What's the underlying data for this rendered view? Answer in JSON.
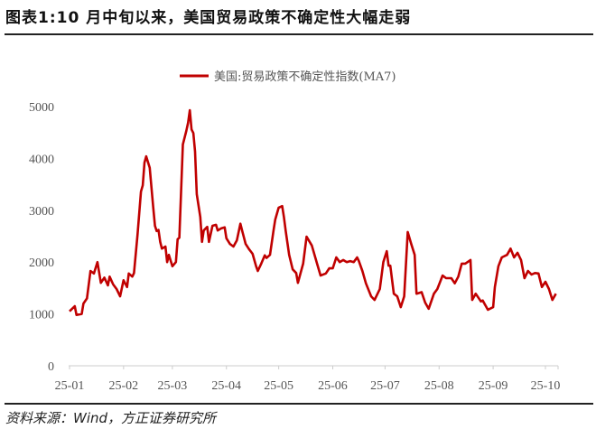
{
  "title": "图表1:10 月中旬以来，美国贸易政策不确定性大幅走弱",
  "source": "资料来源：Wind，方正证券研究所",
  "chart_data": {
    "type": "line",
    "title": "",
    "xlabel": "",
    "ylabel": "",
    "ylim": [
      0,
      5000
    ],
    "yticks": [
      "0",
      "1000",
      "2000",
      "3000",
      "4000",
      "5000"
    ],
    "xticks": [
      "25-01",
      "25-02",
      "25-03",
      "25-04",
      "25-05",
      "25-06",
      "25-07",
      "25-08",
      "25-09",
      "25-10"
    ],
    "xtick_dates": [
      "2025-01-01",
      "2025-02-01",
      "2025-03-01",
      "2025-04-01",
      "2025-05-01",
      "2025-06-01",
      "2025-07-01",
      "2025-08-01",
      "2025-09-01",
      "2025-10-01"
    ],
    "grid": false,
    "legend_placement": "top-center",
    "series": [
      {
        "name": "美国:贸易政策不确定性指数(MA7)",
        "color": "#C00000",
        "points": [
          [
            "2025-01-01",
            1050
          ],
          [
            "2025-01-04",
            1150
          ],
          [
            "2025-01-05",
            980
          ],
          [
            "2025-01-08",
            1000
          ],
          [
            "2025-01-09",
            1200
          ],
          [
            "2025-01-11",
            1300
          ],
          [
            "2025-01-13",
            1830
          ],
          [
            "2025-01-15",
            1780
          ],
          [
            "2025-01-17",
            2000
          ],
          [
            "2025-01-19",
            1600
          ],
          [
            "2025-01-21",
            1700
          ],
          [
            "2025-01-23",
            1550
          ],
          [
            "2025-01-24",
            1720
          ],
          [
            "2025-01-26",
            1570
          ],
          [
            "2025-01-28",
            1480
          ],
          [
            "2025-01-30",
            1340
          ],
          [
            "2025-02-01",
            1650
          ],
          [
            "2025-02-03",
            1520
          ],
          [
            "2025-02-04",
            1780
          ],
          [
            "2025-02-06",
            1720
          ],
          [
            "2025-02-07",
            1790
          ],
          [
            "2025-02-09",
            2530
          ],
          [
            "2025-02-11",
            3360
          ],
          [
            "2025-02-12",
            3480
          ],
          [
            "2025-02-13",
            3920
          ],
          [
            "2025-02-14",
            4040
          ],
          [
            "2025-02-16",
            3820
          ],
          [
            "2025-02-18",
            3050
          ],
          [
            "2025-02-19",
            2700
          ],
          [
            "2025-02-20",
            2600
          ],
          [
            "2025-02-21",
            2620
          ],
          [
            "2025-02-22",
            2390
          ],
          [
            "2025-02-23",
            2260
          ],
          [
            "2025-02-25",
            2300
          ],
          [
            "2025-02-26",
            2000
          ],
          [
            "2025-02-27",
            2140
          ],
          [
            "2025-03-01",
            1920
          ],
          [
            "2025-03-03",
            2000
          ],
          [
            "2025-03-04",
            2440
          ],
          [
            "2025-03-05",
            2470
          ],
          [
            "2025-03-07",
            4270
          ],
          [
            "2025-03-09",
            4530
          ],
          [
            "2025-03-10",
            4690
          ],
          [
            "2025-03-11",
            4930
          ],
          [
            "2025-03-12",
            4560
          ],
          [
            "2025-03-13",
            4490
          ],
          [
            "2025-03-14",
            4130
          ],
          [
            "2025-03-15",
            3310
          ],
          [
            "2025-03-17",
            2870
          ],
          [
            "2025-03-18",
            2390
          ],
          [
            "2025-03-19",
            2610
          ],
          [
            "2025-03-21",
            2680
          ],
          [
            "2025-03-22",
            2390
          ],
          [
            "2025-03-24",
            2700
          ],
          [
            "2025-03-26",
            2720
          ],
          [
            "2025-03-27",
            2610
          ],
          [
            "2025-03-29",
            2650
          ],
          [
            "2025-03-31",
            2670
          ],
          [
            "2025-04-01",
            2460
          ],
          [
            "2025-04-03",
            2350
          ],
          [
            "2025-04-05",
            2300
          ],
          [
            "2025-04-07",
            2420
          ],
          [
            "2025-04-09",
            2740
          ],
          [
            "2025-04-10",
            2610
          ],
          [
            "2025-04-12",
            2350
          ],
          [
            "2025-04-14",
            2250
          ],
          [
            "2025-04-16",
            2160
          ],
          [
            "2025-04-18",
            1920
          ],
          [
            "2025-04-19",
            1830
          ],
          [
            "2025-04-21",
            1970
          ],
          [
            "2025-04-23",
            2130
          ],
          [
            "2025-04-24",
            2080
          ],
          [
            "2025-04-26",
            2140
          ],
          [
            "2025-04-28",
            2610
          ],
          [
            "2025-04-29",
            2820
          ],
          [
            "2025-05-01",
            3050
          ],
          [
            "2025-05-03",
            3080
          ],
          [
            "2025-05-04",
            2870
          ],
          [
            "2025-05-05",
            2600
          ],
          [
            "2025-05-07",
            2140
          ],
          [
            "2025-05-09",
            1860
          ],
          [
            "2025-05-11",
            1790
          ],
          [
            "2025-05-12",
            1600
          ],
          [
            "2025-05-15",
            1970
          ],
          [
            "2025-05-17",
            2490
          ],
          [
            "2025-05-20",
            2320
          ],
          [
            "2025-05-23",
            1970
          ],
          [
            "2025-05-25",
            1740
          ],
          [
            "2025-05-28",
            1780
          ],
          [
            "2025-05-30",
            1880
          ],
          [
            "2025-06-01",
            1880
          ],
          [
            "2025-06-03",
            2090
          ],
          [
            "2025-06-05",
            2000
          ],
          [
            "2025-06-07",
            2040
          ],
          [
            "2025-06-09",
            2000
          ],
          [
            "2025-06-11",
            2020
          ],
          [
            "2025-06-13",
            2000
          ],
          [
            "2025-06-15",
            2090
          ],
          [
            "2025-06-16",
            2020
          ],
          [
            "2025-06-18",
            1830
          ],
          [
            "2025-06-20",
            1590
          ],
          [
            "2025-06-23",
            1340
          ],
          [
            "2025-06-25",
            1270
          ],
          [
            "2025-06-28",
            1480
          ],
          [
            "2025-06-30",
            2000
          ],
          [
            "2025-07-02",
            2210
          ],
          [
            "2025-07-03",
            1930
          ],
          [
            "2025-07-04",
            1930
          ],
          [
            "2025-07-06",
            1390
          ],
          [
            "2025-07-08",
            1340
          ],
          [
            "2025-07-10",
            1130
          ],
          [
            "2025-07-12",
            1340
          ],
          [
            "2025-07-14",
            2580
          ],
          [
            "2025-07-16",
            2350
          ],
          [
            "2025-07-18",
            2140
          ],
          [
            "2025-07-19",
            1390
          ],
          [
            "2025-07-22",
            1420
          ],
          [
            "2025-07-24",
            1220
          ],
          [
            "2025-07-26",
            1100
          ],
          [
            "2025-07-29",
            1390
          ],
          [
            "2025-07-31",
            1480
          ],
          [
            "2025-08-03",
            1740
          ],
          [
            "2025-08-05",
            1690
          ],
          [
            "2025-08-08",
            1690
          ],
          [
            "2025-08-10",
            1590
          ],
          [
            "2025-08-12",
            1720
          ],
          [
            "2025-08-14",
            1970
          ],
          [
            "2025-08-16",
            1970
          ],
          [
            "2025-08-19",
            2040
          ],
          [
            "2025-08-20",
            1270
          ],
          [
            "2025-08-22",
            1390
          ],
          [
            "2025-08-25",
            1240
          ],
          [
            "2025-08-26",
            1260
          ],
          [
            "2025-08-29",
            1080
          ],
          [
            "2025-09-01",
            1130
          ],
          [
            "2025-09-02",
            1520
          ],
          [
            "2025-09-04",
            1920
          ],
          [
            "2025-09-06",
            2090
          ],
          [
            "2025-09-09",
            2140
          ],
          [
            "2025-09-11",
            2260
          ],
          [
            "2025-09-13",
            2090
          ],
          [
            "2025-09-15",
            2180
          ],
          [
            "2025-09-17",
            2040
          ],
          [
            "2025-09-19",
            1690
          ],
          [
            "2025-09-21",
            1830
          ],
          [
            "2025-09-23",
            1760
          ],
          [
            "2025-09-25",
            1790
          ],
          [
            "2025-09-27",
            1780
          ],
          [
            "2025-09-29",
            1520
          ],
          [
            "2025-10-01",
            1620
          ],
          [
            "2025-10-03",
            1480
          ],
          [
            "2025-10-05",
            1270
          ],
          [
            "2025-10-07",
            1390
          ]
        ]
      }
    ]
  }
}
